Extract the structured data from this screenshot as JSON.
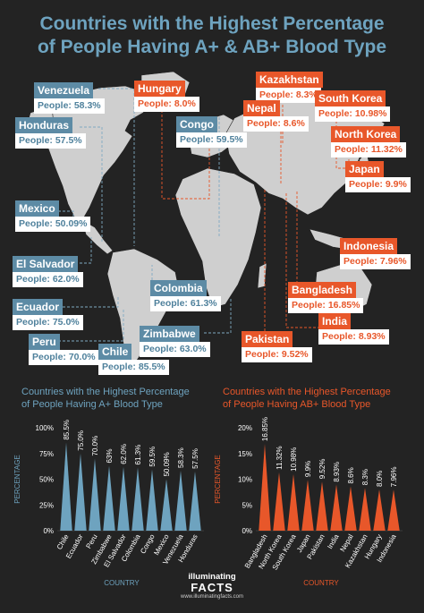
{
  "title": {
    "line1": "Countries with the Highest Percentage",
    "line2": "of People Having A+ & AB+ Blood Type"
  },
  "colors": {
    "background": "#232323",
    "a_plus": "#6ea3bf",
    "ab_plus": "#e8572a",
    "map_land": "#cfcfcf"
  },
  "map_labels": {
    "a_plus": [
      {
        "country": "Venezuela",
        "value": "People: 58.3%"
      },
      {
        "country": "Honduras",
        "value": "People: 57.5%"
      },
      {
        "country": "Mexico",
        "value": "People: 50.09%"
      },
      {
        "country": "El Salvador",
        "value": "People: 62.0%"
      },
      {
        "country": "Ecuador",
        "value": "People: 75.0%"
      },
      {
        "country": "Peru",
        "value": "People: 70.0%"
      },
      {
        "country": "Chile",
        "value": "People: 85.5%"
      },
      {
        "country": "Zimbabwe",
        "value": "People: 63.0%"
      },
      {
        "country": "Colombia",
        "value": "People: 61.3%"
      },
      {
        "country": "Congo",
        "value": "People: 59.5%"
      }
    ],
    "ab_plus": [
      {
        "country": "Hungary",
        "value": "People: 8.0%"
      },
      {
        "country": "Kazakhstan",
        "value": "People: 8.3%"
      },
      {
        "country": "Nepal",
        "value": "People: 8.6%"
      },
      {
        "country": "South Korea",
        "value": "People: 10.98%"
      },
      {
        "country": "North Korea",
        "value": "People: 11.32%"
      },
      {
        "country": "Japan",
        "value": "People: 9.9%"
      },
      {
        "country": "Indonesia",
        "value": "People: 7.96%"
      },
      {
        "country": "Bangladesh",
        "value": "People: 16.85%"
      },
      {
        "country": "India",
        "value": "People: 8.93%"
      },
      {
        "country": "Pakistan",
        "value": "People: 9.52%"
      }
    ]
  },
  "chart_data": [
    {
      "type": "bar",
      "title": "Countries with the Highest Percentage of People Having A+ Blood Type",
      "title_lines": [
        "Countries with the Highest Percentage",
        "of People Having A+ Blood Type"
      ],
      "xlabel": "COUNTRY",
      "ylabel": "PERCENTAGE",
      "categories": [
        "Chile",
        "Ecuador",
        "Peru",
        "Zimbabwe",
        "El Salvador",
        "Colombia",
        "Congo",
        "Mexico",
        "Venezuela",
        "Honduras"
      ],
      "values": [
        85.5,
        75.0,
        70.0,
        63,
        62.0,
        61.3,
        59.5,
        50.09,
        58.3,
        57.5
      ],
      "value_labels": [
        "85.5%",
        "75.0%",
        "70.0%",
        "63%",
        "62.0%",
        "61.3%",
        "59.5%",
        "50.09%",
        "58.3%",
        "57.5%"
      ],
      "yticks": [
        "0%",
        "25%",
        "50%",
        "75%",
        "100%"
      ],
      "ylim": [
        0,
        100
      ],
      "color": "#6ea3bf",
      "mark_shape": "spike"
    },
    {
      "type": "bar",
      "title": "Countries with the Highest Percentage of People Having AB+ Blood Type",
      "title_lines": [
        "Countries with the Highest Percentage",
        "of People Having AB+ Blood Type"
      ],
      "xlabel": "COUNTRY",
      "ylabel": "PERCENTAGE",
      "categories": [
        "Bangladesh",
        "North Korea",
        "South Korea",
        "Japan",
        "Pakistan",
        "India",
        "Nepal",
        "Kazakhstan",
        "Hungary",
        "Indonesia"
      ],
      "values": [
        16.85,
        11.32,
        10.98,
        9.9,
        9.52,
        8.93,
        8.6,
        8.3,
        8.0,
        7.96
      ],
      "value_labels": [
        "16.85%",
        "11.32%",
        "10.98%",
        "9.9%",
        "9.52%",
        "8.93%",
        "8.6%",
        "8.3%",
        "8.0%",
        "7.96%"
      ],
      "yticks": [
        "0%",
        "5%",
        "10%",
        "15%",
        "20%"
      ],
      "ylim": [
        0,
        20
      ],
      "color": "#e8572a",
      "mark_shape": "spike"
    }
  ],
  "footer": {
    "logo_line1": "illuminating",
    "logo_line2": "FACTS",
    "url": "www.illuminatingfacts.com"
  }
}
